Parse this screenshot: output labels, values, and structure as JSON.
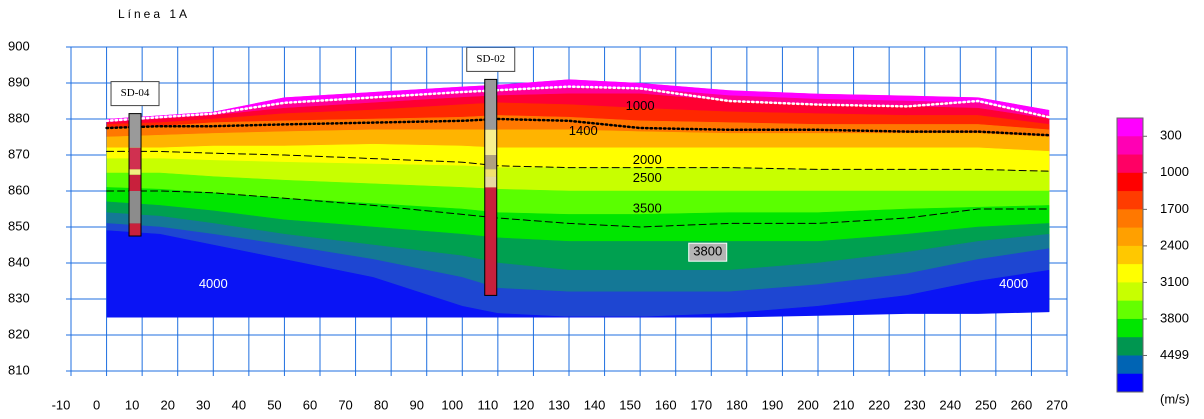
{
  "chart_data": {
    "type": "contour",
    "title": "Línea 1A",
    "xlim": [
      -10,
      270
    ],
    "xticks": [
      -10,
      0,
      10,
      20,
      30,
      40,
      50,
      60,
      70,
      80,
      90,
      100,
      110,
      120,
      130,
      140,
      150,
      160,
      170,
      180,
      190,
      200,
      210,
      220,
      230,
      240,
      250,
      260,
      270
    ],
    "ylim": [
      810,
      900
    ],
    "yticks": [
      810,
      820,
      830,
      840,
      850,
      860,
      870,
      880,
      890,
      900
    ],
    "grid": true,
    "grid_color": "#1f6fe0",
    "x": [
      0,
      15,
      30,
      50,
      75,
      100,
      110,
      130,
      150,
      175,
      200,
      225,
      245,
      265
    ],
    "bands": [
      {
        "color": "#ff00ff",
        "values": [
          880,
          881,
          882,
          886,
          887.5,
          889,
          889.5,
          891,
          890,
          888,
          887,
          886.5,
          886,
          882.5
        ]
      },
      {
        "color": "#ff0096",
        "values": [
          879.5,
          880.5,
          881.5,
          884.5,
          886,
          887.5,
          888,
          888.5,
          888.5,
          886.5,
          885.5,
          885,
          884.5,
          881
        ]
      },
      {
        "color": "#ff0032",
        "values": [
          879,
          880,
          881,
          883,
          884.5,
          886,
          886.5,
          887,
          887,
          885,
          884,
          883.5,
          883,
          880
        ]
      },
      {
        "color": "#ff2800",
        "values": [
          878.5,
          879,
          880,
          881.5,
          882.5,
          884,
          884.5,
          884,
          883,
          882,
          881.5,
          881,
          881,
          878.5
        ]
      },
      {
        "color": "#ff7800",
        "values": [
          877.5,
          878,
          879,
          879.5,
          880,
          880.5,
          881,
          880.5,
          879.5,
          879,
          878.5,
          878.5,
          878.5,
          877
        ]
      },
      {
        "color": "#ffb400",
        "values": [
          875,
          875.5,
          876,
          876.5,
          877,
          877,
          877,
          877,
          876.5,
          876,
          876,
          876,
          876,
          875
        ]
      },
      {
        "color": "#ffff00",
        "values": [
          872,
          872,
          872.5,
          872.5,
          873,
          872.5,
          872,
          872,
          872,
          872,
          872,
          872,
          872,
          871
        ]
      },
      {
        "color": "#c8ff00",
        "values": [
          869,
          869,
          868.5,
          868,
          867.5,
          867,
          866.5,
          866.5,
          866.5,
          866.5,
          866,
          866,
          866,
          865.5
        ]
      },
      {
        "color": "#5aff00",
        "values": [
          865,
          865,
          864,
          863,
          862,
          861,
          860.5,
          860,
          860,
          860,
          860,
          860,
          860,
          860
        ]
      },
      {
        "color": "#00e600",
        "values": [
          861,
          860.5,
          859.5,
          858,
          856.5,
          855,
          854,
          853.5,
          853.5,
          854,
          854,
          855,
          855.5,
          856
        ]
      },
      {
        "color": "#00a050",
        "values": [
          857,
          856,
          854.5,
          852,
          850,
          848,
          847,
          846,
          846,
          846,
          846,
          848,
          850,
          851
        ]
      },
      {
        "color": "#147896",
        "values": [
          854,
          853,
          851,
          848,
          845,
          842,
          840,
          838,
          838,
          838,
          840,
          843,
          846,
          848
        ]
      },
      {
        "color": "#1e46d2",
        "values": [
          851,
          850,
          848,
          845,
          841,
          836,
          833,
          832,
          832,
          832,
          834,
          837,
          841,
          844
        ]
      },
      {
        "color": "#0a14f5",
        "values": [
          849,
          848,
          845,
          841,
          836,
          828,
          826,
          825,
          825,
          826,
          828,
          831,
          835,
          838
        ]
      }
    ],
    "bottom": [
      825,
      825,
      825,
      825,
      825,
      825,
      825,
      825,
      825,
      825,
      825.5,
      826,
      826,
      826.5
    ],
    "lines": [
      {
        "color": "#ffffff",
        "dash": "dot",
        "values": [
          879.5,
          880.5,
          881.5,
          884.5,
          886,
          887.5,
          888,
          889,
          888.5,
          885,
          884,
          883.5,
          885,
          880.5
        ]
      },
      {
        "color": "#000000",
        "dash": "dot",
        "values": [
          877.5,
          878,
          878,
          878.5,
          879,
          879.5,
          880,
          879.5,
          877.5,
          877,
          877,
          876.5,
          876.5,
          875.5
        ]
      },
      {
        "color": "#000000",
        "dash": "dash",
        "values": [
          871,
          871,
          870.5,
          870,
          869,
          868,
          867,
          866.5,
          866.5,
          866.5,
          866,
          866,
          866,
          865.5
        ]
      },
      {
        "color": "#000000",
        "dash": "dash",
        "values": [
          860,
          860,
          859.5,
          858,
          856,
          853.5,
          852.5,
          851,
          850,
          851,
          851,
          852.5,
          855,
          855
        ]
      }
    ],
    "contour_labels": [
      {
        "text": 1000,
        "color": "#000000"
      },
      {
        "text": 1400,
        "color": "#000000"
      },
      {
        "text": 2000,
        "color": "#000000"
      },
      {
        "text": 2500,
        "color": "#000000"
      },
      {
        "text": 3500,
        "color": "#000000"
      },
      {
        "text": 3800,
        "color": "#000000",
        "boxed": true
      },
      {
        "text": 4000,
        "color": "#ffffff"
      },
      {
        "text": 4000,
        "color": "#ffffff"
      }
    ],
    "boreholes": [
      {
        "name": "SD-04",
        "x": 8,
        "top": 881.5,
        "segments": [
          {
            "color": "#9a9a9a",
            "bottom": 872
          },
          {
            "color": "#d03050",
            "bottom": 866
          },
          {
            "color": "#f0f080",
            "bottom": 864.5
          },
          {
            "color": "#c8203c",
            "bottom": 860
          },
          {
            "color": "#8c8c8c",
            "bottom": 851
          },
          {
            "color": "#c8203c",
            "bottom": 847.5
          }
        ]
      },
      {
        "name": "SD-02",
        "x": 108,
        "top": 891,
        "segments": [
          {
            "color": "#9a9a9a",
            "bottom": 877
          },
          {
            "color": "#f8f090",
            "bottom": 870
          },
          {
            "color": "#b0a080",
            "bottom": 866
          },
          {
            "color": "#f0e070",
            "bottom": 864
          },
          {
            "color": "#e8d8a0",
            "bottom": 861
          },
          {
            "color": "#c8203c",
            "bottom": 831
          }
        ]
      }
    ],
    "colorbar": {
      "colors": [
        "#ff00ff",
        "#ff00b4",
        "#ff0064",
        "#ff0000",
        "#ff3c00",
        "#ff7800",
        "#ffa000",
        "#ffc800",
        "#ffff00",
        "#c8ff00",
        "#64ff00",
        "#00e600",
        "#009650",
        "#0064b4",
        "#0000ff"
      ],
      "ticks": [
        300,
        1000,
        1700,
        2400,
        3100,
        3800,
        4499
      ],
      "unit": "(m/s)"
    }
  }
}
